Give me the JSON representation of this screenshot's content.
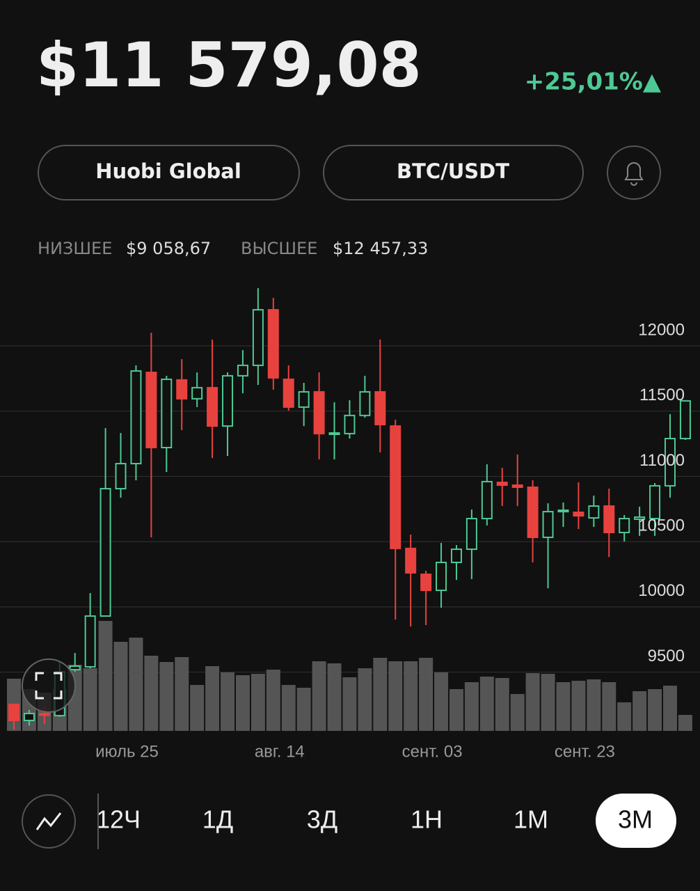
{
  "header": {
    "price": "$11 579,08",
    "change": "+25,01%▲"
  },
  "buttons": {
    "exchange": "Huobi Global",
    "pair": "BTC/USDT"
  },
  "stats": {
    "low_label": "НИЗШЕЕ",
    "low_value": "$9 058,67",
    "high_label": "ВЫСШЕЕ",
    "high_value": "$12 457,33"
  },
  "timeframes": {
    "items": [
      "12Ч",
      "1Д",
      "3Д",
      "1Н",
      "1М",
      "3М"
    ],
    "selected": 5
  },
  "chart_data": {
    "type": "candlestick",
    "categories": [
      null,
      null,
      null,
      null,
      null,
      null,
      null,
      "июль 25",
      null,
      null,
      null,
      null,
      null,
      null,
      null,
      null,
      null,
      "авг. 14",
      null,
      null,
      null,
      null,
      null,
      null,
      null,
      null,
      null,
      "сент. 03",
      null,
      null,
      null,
      null,
      null,
      null,
      null,
      null,
      null,
      "сент. 23",
      null,
      null,
      null,
      null,
      null,
      null,
      null
    ],
    "open": [
      9253,
      9130,
      9183,
      9167,
      9519,
      9541,
      9930,
      10906,
      11098,
      11797,
      11221,
      11739,
      11595,
      11680,
      11386,
      11771,
      11851,
      12277,
      11744,
      11531,
      11648,
      11328,
      11328,
      11467,
      11648,
      11386,
      10448,
      10250,
      10127,
      10341,
      10442,
      10677,
      10954,
      10933,
      10917,
      10533,
      10730,
      10725,
      10682,
      10773,
      10570,
      10672,
      10677,
      10928,
      11290
    ],
    "high": [
      9253,
      9210,
      9237,
      9583,
      9647,
      10106,
      11370,
      11333,
      11851,
      12101,
      11771,
      11899,
      11797,
      12048,
      11797,
      11968,
      12443,
      12368,
      11851,
      11717,
      11797,
      11568,
      11584,
      11771,
      12048,
      11434,
      10554,
      10277,
      10490,
      10474,
      10746,
      11093,
      11066,
      11168,
      10970,
      10794,
      10800,
      10954,
      10853,
      10906,
      10704,
      10768,
      10949,
      11477,
      11579
    ],
    "low": [
      9059,
      9090,
      9103,
      9157,
      9503,
      9530,
      9930,
      10837,
      10970,
      10533,
      11034,
      11354,
      11531,
      11141,
      11157,
      11637,
      11701,
      11664,
      11504,
      11386,
      11130,
      11130,
      11290,
      11450,
      11184,
      9903,
      9850,
      9861,
      9994,
      10207,
      10213,
      10624,
      10773,
      10773,
      10341,
      10143,
      10613,
      10597,
      10613,
      10383,
      10501,
      10544,
      10544,
      10837,
      11280
    ],
    "close": [
      9130,
      9183,
      9170,
      9503,
      9546,
      9930,
      10906,
      11098,
      11808,
      11221,
      11744,
      11595,
      11680,
      11386,
      11771,
      11851,
      12277,
      11755,
      11531,
      11648,
      11328,
      11333,
      11467,
      11648,
      11397,
      10448,
      10261,
      10127,
      10341,
      10442,
      10677,
      10960,
      10933,
      10917,
      10533,
      10730,
      10741,
      10698,
      10773,
      10570,
      10677,
      10688,
      10928,
      11290,
      11579
    ],
    "volume": [
      75,
      60,
      55,
      60,
      95,
      90,
      158,
      128,
      134,
      108,
      99,
      106,
      66,
      93,
      84,
      80,
      82,
      88,
      66,
      62,
      100,
      97,
      77,
      90,
      105,
      100,
      100,
      105,
      84,
      60,
      70,
      78,
      76,
      53,
      83,
      82,
      70,
      72,
      74,
      70,
      41,
      57,
      60,
      65,
      23
    ],
    "up_color": "#4ec994",
    "down_color": "#e8423f",
    "volume_color": "#555555",
    "ylim": [
      9050,
      12517
    ],
    "yticks": [
      9500,
      10000,
      10500,
      11000,
      11500,
      12000
    ],
    "grid": true
  }
}
